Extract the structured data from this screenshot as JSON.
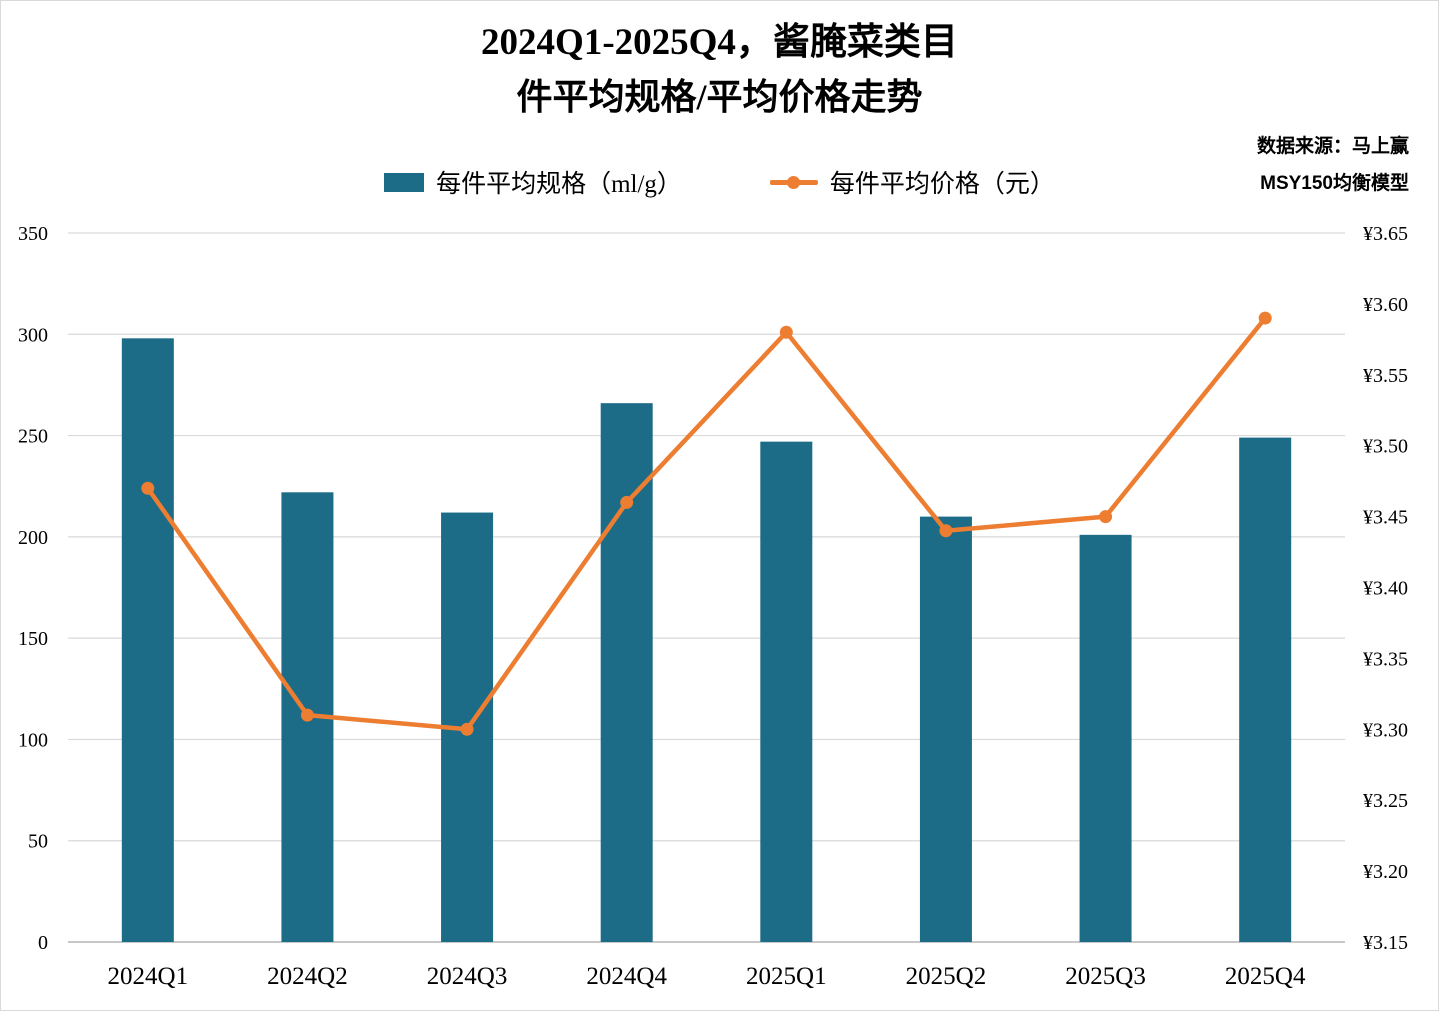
{
  "title": {
    "line1": "2024Q1-2025Q4，酱腌菜类目",
    "line2": "件平均规格/平均价格走势"
  },
  "source": {
    "line1": "数据来源：马上赢",
    "line2": "MSY150均衡模型"
  },
  "legend": [
    {
      "label": "每件平均规格（ml/g）",
      "type": "bar"
    },
    {
      "label": "每件平均价格（元）",
      "type": "line"
    }
  ],
  "colors": {
    "bar": "#1c6b87",
    "line": "#ed7d31",
    "grid": "#d9d9d9",
    "axis": "#a6a6a6",
    "text": "#000000"
  },
  "chart_data": {
    "type": "bar",
    "subtype": "combo-bar-line-dual-axis",
    "title": "2024Q1-2025Q4，酱腌菜类目 件平均规格/平均价格走势",
    "categories": [
      "2024Q1",
      "2024Q2",
      "2024Q3",
      "2024Q4",
      "2025Q1",
      "2025Q2",
      "2025Q3",
      "2025Q4"
    ],
    "series": [
      {
        "name": "每件平均规格（ml/g）",
        "type": "bar",
        "axis": "left",
        "values": [
          298,
          222,
          212,
          266,
          247,
          210,
          201,
          249
        ]
      },
      {
        "name": "每件平均价格（元）",
        "type": "line",
        "axis": "right",
        "values": [
          3.47,
          3.31,
          3.3,
          3.46,
          3.58,
          3.44,
          3.45,
          3.59
        ]
      }
    ],
    "left_axis": {
      "min": 0,
      "max": 350,
      "step": 50,
      "ticks": [
        "0",
        "50",
        "100",
        "150",
        "200",
        "250",
        "300",
        "350"
      ]
    },
    "right_axis": {
      "min": 3.15,
      "max": 3.65,
      "step": 0.05,
      "ticks": [
        "¥3.15",
        "¥3.20",
        "¥3.25",
        "¥3.30",
        "¥3.35",
        "¥3.40",
        "¥3.45",
        "¥3.50",
        "¥3.55",
        "¥3.60",
        "¥3.65"
      ]
    },
    "grid": true,
    "legend_position": "top-center"
  }
}
